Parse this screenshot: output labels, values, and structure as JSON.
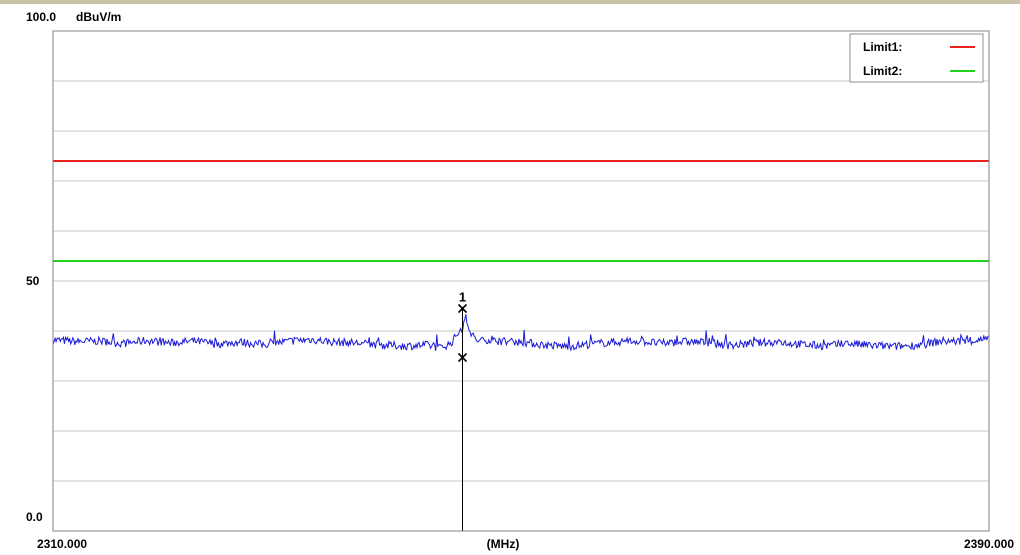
{
  "chart_data": {
    "type": "line",
    "title": "",
    "ylabel": "dBuV/m",
    "xlabel": "(MHz)",
    "xlim": [
      2310.0,
      2390.0
    ],
    "ylim": [
      0.0,
      100.0
    ],
    "grid": true,
    "legend_position": "top-right",
    "ytick_labels": [
      {
        "value": 100.0,
        "label": "100.0"
      },
      {
        "value": 50.0,
        "label": "50"
      },
      {
        "value": 0.0,
        "label": "0.0"
      }
    ],
    "xtick_labels": [
      {
        "value": 2310.0,
        "label": "2310.000"
      },
      {
        "value": 2390.0,
        "label": "2390.000"
      }
    ],
    "limits": [
      {
        "name": "Limit1:",
        "value": 74,
        "color": "#e8231e"
      },
      {
        "name": "Limit2:",
        "value": 54,
        "color": "#22d21e"
      }
    ],
    "trace": {
      "color": "#1a1ad6",
      "x": [
        2310,
        2312,
        2314,
        2316,
        2318,
        2320,
        2322,
        2324,
        2326,
        2328,
        2330,
        2332,
        2334,
        2336,
        2338,
        2340,
        2342,
        2343,
        2344,
        2344.5,
        2345,
        2345.3,
        2345.6,
        2346,
        2346.5,
        2347,
        2348,
        2350,
        2352,
        2354,
        2356,
        2358,
        2360,
        2362,
        2364,
        2366,
        2368,
        2370,
        2372,
        2374,
        2376,
        2378,
        2380,
        2382,
        2384,
        2386,
        2388,
        2390
      ],
      "y": [
        38.2,
        37.9,
        38.0,
        37.5,
        38.1,
        37.6,
        38.0,
        37.4,
        37.8,
        37.3,
        37.9,
        38.3,
        37.8,
        37.6,
        37.2,
        37.0,
        37.2,
        36.6,
        37.5,
        39.2,
        40.8,
        42.7,
        40.0,
        38.6,
        37.8,
        38.3,
        38.0,
        37.8,
        37.2,
        36.9,
        37.4,
        37.8,
        38.0,
        37.5,
        37.9,
        37.7,
        37.1,
        37.6,
        37.8,
        37.3,
        37.0,
        37.5,
        37.1,
        36.9,
        37.2,
        38.0,
        37.9,
        38.4
      ]
    },
    "markers": [
      {
        "label": "1",
        "x": 2345.0,
        "peak": 44.5,
        "average": 34.7
      }
    ]
  }
}
